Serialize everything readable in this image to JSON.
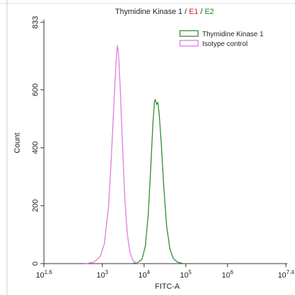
{
  "chart_data": {
    "type": "line",
    "title_parts": [
      {
        "text": "Thymidine Kinase 1 / ",
        "color": "#222222"
      },
      {
        "text": "E1",
        "color": "#d02020"
      },
      {
        "text": " / ",
        "color": "#222222"
      },
      {
        "text": "E2",
        "color": "#208020"
      }
    ],
    "xlabel": "FITC-A",
    "ylabel": "Count",
    "xscale": "log",
    "xlim": [
      39.81,
      25118864
    ],
    "xticks": [
      {
        "value": 39.81,
        "label": "10",
        "power": "1.6"
      },
      {
        "value": 1000,
        "label": "10",
        "power": "3"
      },
      {
        "value": 10000,
        "label": "10",
        "power": "4"
      },
      {
        "value": 100000,
        "label": "10",
        "power": "5"
      },
      {
        "value": 1000000,
        "label": "10",
        "power": "6"
      },
      {
        "value": 25118864,
        "label": "10",
        "power": "7.4"
      }
    ],
    "ylim": [
      0,
      833
    ],
    "yticks": [
      0,
      200,
      400,
      600,
      833
    ],
    "legend": "upper right",
    "series": [
      {
        "name": "Thymidine Kinase 1",
        "color": "#2e8b2e",
        "x": [
          5012,
          7079,
          8913,
          10715,
          12589,
          14454,
          16218,
          17783,
          18621,
          19953,
          21380,
          22909,
          25704,
          29512,
          34674,
          41687,
          50119,
          63096,
          89125
        ],
        "values": [
          0,
          4,
          15,
          60,
          170,
          330,
          480,
          560,
          566,
          550,
          556,
          520,
          420,
          270,
          130,
          50,
          18,
          5,
          0
        ]
      },
      {
        "name": "Isotype control",
        "color": "#e07ae0",
        "x": [
          398,
          631,
          891,
          1122,
          1413,
          1660,
          1905,
          2138,
          2291,
          2455,
          2692,
          3020,
          3467,
          3981,
          4571,
          5370,
          6310,
          7943
        ],
        "values": [
          0,
          5,
          25,
          70,
          200,
          380,
          560,
          700,
          754,
          720,
          600,
          420,
          220,
          100,
          40,
          12,
          3,
          0
        ]
      }
    ]
  }
}
